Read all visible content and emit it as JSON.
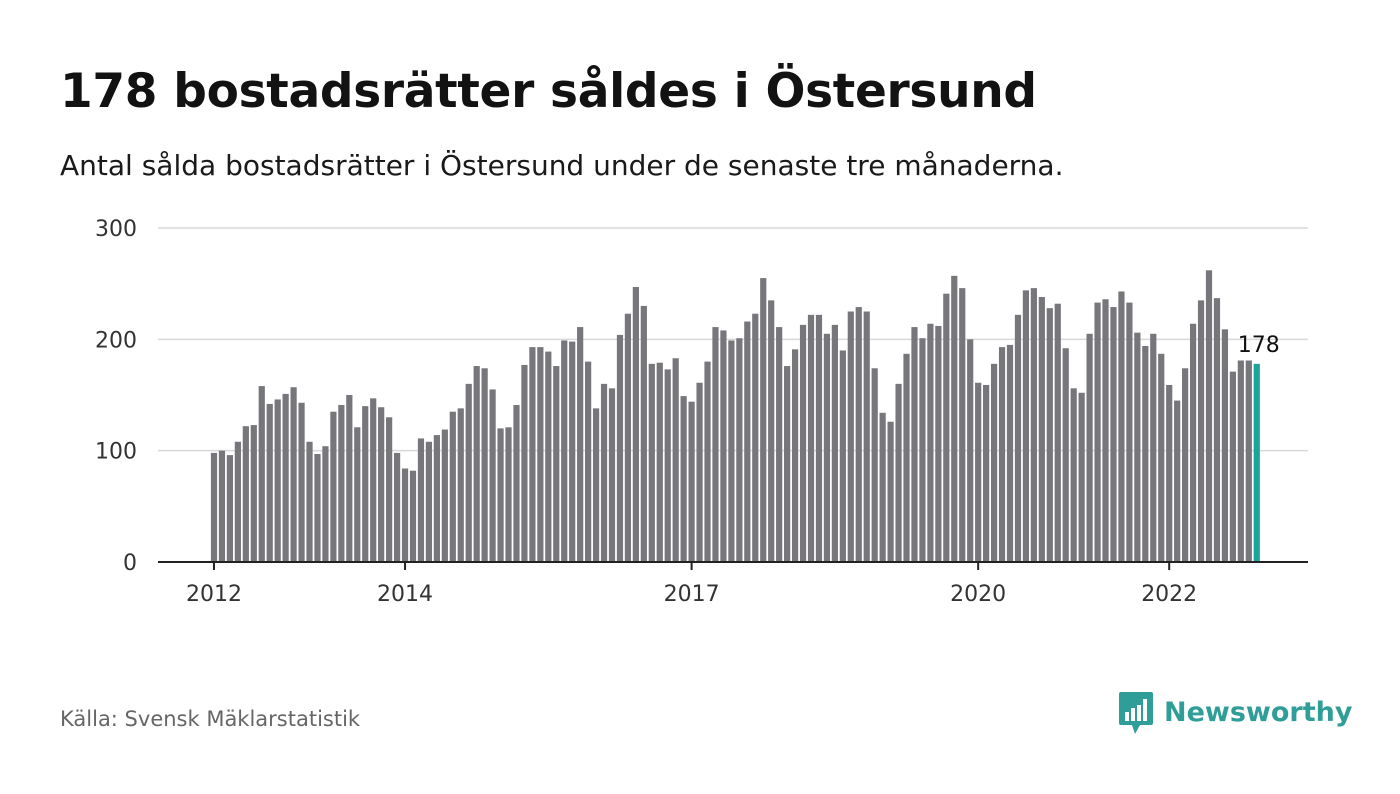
{
  "header": {
    "title": "178 bostadsrätter såldes i Östersund",
    "subtitle": "Antal sålda bostadsrätter i Östersund under de senaste tre månaderna."
  },
  "footer": {
    "source": "Källa: Svensk Mäklarstatistik",
    "brand": "Newsworthy",
    "brand_icon": "bar-chart-speech-bubble-icon"
  },
  "colors": {
    "bar": "#77767b",
    "highlight": "#1ca39a",
    "grid": "#d9d9d9",
    "axis": "#222222",
    "brand": "#2f9e98"
  },
  "chart_data": {
    "type": "bar",
    "title": "178 bostadsrätter såldes i Östersund",
    "subtitle": "Antal sålda bostadsrätter i Östersund under de senaste tre månaderna.",
    "xlabel": "",
    "ylabel": "",
    "ylim": [
      0,
      300
    ],
    "yticks": [
      0,
      100,
      200,
      300
    ],
    "grid": true,
    "x_tick_labels": [
      "2012",
      "2014",
      "2017",
      "2020",
      "2022"
    ],
    "x_tick_bar_index": [
      0,
      24,
      60,
      96,
      120
    ],
    "highlight_label": "178",
    "highlight_index": 131,
    "series": [
      {
        "values": [
          98,
          100,
          96,
          108,
          122,
          123,
          158,
          142,
          146,
          151,
          157,
          143,
          108,
          97,
          104,
          135,
          141,
          150,
          121,
          140,
          147,
          139,
          130,
          98,
          84,
          82,
          111,
          108,
          114,
          119,
          135,
          138,
          160,
          176,
          174,
          155,
          120,
          121,
          141,
          177,
          193,
          193,
          189,
          176,
          199,
          198,
          211,
          180,
          138,
          160,
          156,
          204,
          223,
          247,
          230,
          178,
          179,
          173,
          183,
          149,
          144,
          161,
          180,
          211,
          208,
          199,
          201,
          216,
          223,
          255,
          235,
          211,
          176,
          191,
          213,
          222,
          222,
          205,
          213,
          190,
          225,
          229,
          225,
          174,
          134,
          126,
          160,
          187,
          211,
          201,
          214,
          212,
          241,
          257,
          246,
          200,
          161,
          159,
          178,
          193,
          195,
          222,
          244,
          246,
          238,
          228,
          232,
          192,
          156,
          152,
          205,
          233,
          236,
          229,
          243,
          233,
          206,
          194,
          205,
          187,
          159,
          145,
          174,
          214,
          235,
          262,
          237,
          209,
          171,
          181,
          181,
          178
        ]
      }
    ]
  }
}
